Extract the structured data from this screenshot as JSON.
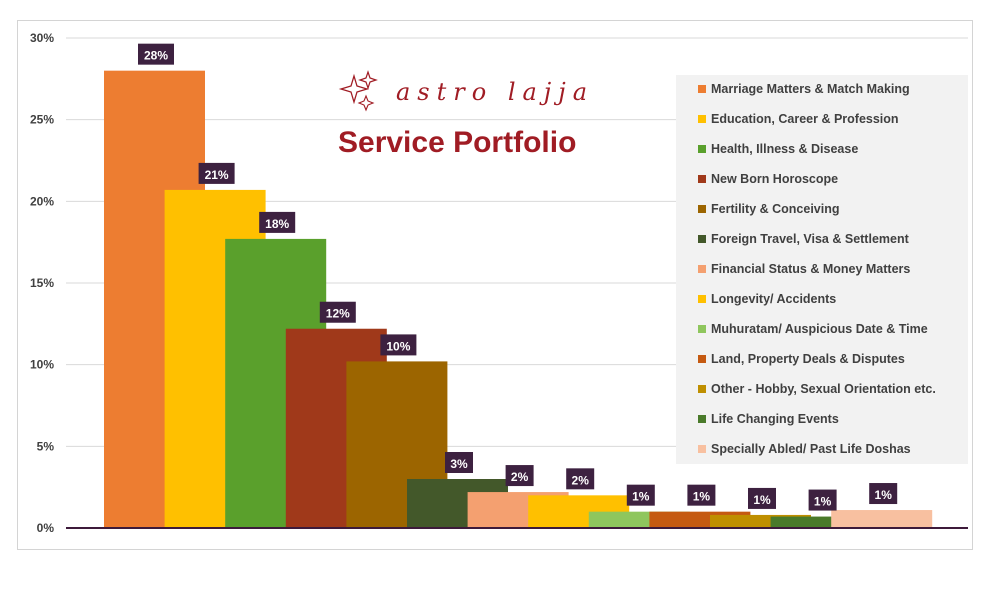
{
  "brand": {
    "name": "astro lajja",
    "title": "Service Portfolio"
  },
  "colors": {
    "axis": "#3d1a3a",
    "grid": "#d9d9d9",
    "label_bg": "#3d2140",
    "brand": "#a01c24"
  },
  "chart_data": {
    "type": "bar",
    "title": "Service Portfolio",
    "xlabel": "",
    "ylabel": "",
    "ylim": [
      0,
      30
    ],
    "yticks": [
      "0%",
      "5%",
      "10%",
      "15%",
      "20%",
      "25%",
      "30%"
    ],
    "grid": true,
    "legend_position": "right",
    "categories": [
      "Marriage Matters & Match Making",
      "Education, Career & Profession",
      "Health, Illness & Disease",
      "New Born Horoscope",
      "Fertility & Conceiving",
      "Foreign Travel, Visa & Settlement",
      "Financial Status & Money Matters",
      "Longevity/ Accidents",
      "Muhuratam/ Auspicious Date & Time",
      "Land, Property Deals & Disputes",
      "Other - Hobby, Sexual Orientation etc.",
      "Life Changing Events",
      "Specially Abled/ Past Life Doshas"
    ],
    "values": [
      28,
      20.7,
      17.7,
      12.2,
      10.2,
      3,
      2.2,
      2,
      1,
      1,
      0.8,
      0.7,
      1.1
    ],
    "labels": [
      "28%",
      "21%",
      "18%",
      "12%",
      "10%",
      "3%",
      "2%",
      "2%",
      "1%",
      "1%",
      "1%",
      "1%",
      "1%"
    ],
    "series_colors": [
      "#ed7d31",
      "#ffc000",
      "#5aa02c",
      "#a0391a",
      "#9c6500",
      "#43582a",
      "#f4a070",
      "#ffc000",
      "#8fc65d",
      "#c55a11",
      "#bf8f00",
      "#4a7a2a",
      "#f8c0a0"
    ]
  }
}
